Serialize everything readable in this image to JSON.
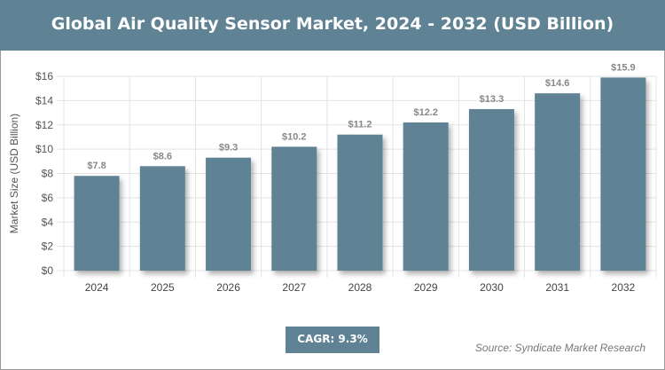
{
  "header": {
    "title": "Global Air Quality Sensor Market, 2024 - 2032 (USD Billion)"
  },
  "chart_data": {
    "type": "bar",
    "title": "Global Air Quality Sensor Market, 2024 - 2032 (USD Billion)",
    "xlabel": "",
    "ylabel": "Market Size (USD Billion)",
    "categories": [
      "2024",
      "2025",
      "2026",
      "2027",
      "2028",
      "2029",
      "2030",
      "2031",
      "2032"
    ],
    "values": [
      7.8,
      8.6,
      9.3,
      10.2,
      11.2,
      12.2,
      13.3,
      14.6,
      15.9
    ],
    "data_labels": [
      "$7.8",
      "$8.6",
      "$9.3",
      "$10.2",
      "$11.2",
      "$12.2",
      "$13.3",
      "$14.6",
      "$15.9"
    ],
    "ylim": [
      0,
      16
    ],
    "yticks": [
      "$0",
      "$2",
      "$4",
      "$6",
      "$8",
      "$10",
      "$12",
      "$14",
      "$16"
    ],
    "grid": true,
    "bar_color": "#5f8394"
  },
  "footer": {
    "cagr": "CAGR: 9.3%",
    "source": "Source: Syndicate Market Research"
  }
}
